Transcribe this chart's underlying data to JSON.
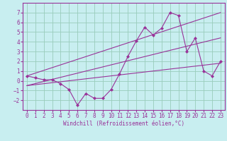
{
  "title": "",
  "xlabel": "Windchill (Refroidissement éolien,°C)",
  "xlim": [
    -0.5,
    23.5
  ],
  "ylim": [
    -3.0,
    8.0
  ],
  "yticks": [
    -2,
    -1,
    0,
    1,
    2,
    3,
    4,
    5,
    6,
    7
  ],
  "xticks": [
    0,
    1,
    2,
    3,
    4,
    5,
    6,
    7,
    8,
    9,
    10,
    11,
    12,
    13,
    14,
    15,
    16,
    17,
    18,
    19,
    20,
    21,
    22,
    23
  ],
  "background_color": "#c8eef0",
  "line_color": "#993399",
  "grid_color": "#99ccbb",
  "data_line": {
    "x": [
      0,
      1,
      2,
      3,
      4,
      5,
      6,
      7,
      8,
      9,
      10,
      11,
      12,
      13,
      14,
      15,
      16,
      17,
      18,
      19,
      20,
      21,
      22,
      23
    ],
    "y": [
      0.5,
      0.3,
      0.1,
      0.1,
      -0.3,
      -0.9,
      -2.5,
      -1.3,
      -1.8,
      -1.8,
      -0.9,
      0.7,
      2.5,
      4.1,
      5.5,
      4.7,
      5.4,
      7.0,
      6.7,
      3.0,
      4.4,
      1.0,
      0.5,
      2.0
    ]
  },
  "reg_line": {
    "x": [
      0,
      23
    ],
    "y": [
      -0.5,
      4.4
    ]
  },
  "upper_line": {
    "x": [
      0,
      23
    ],
    "y": [
      0.5,
      7.0
    ]
  },
  "lower_line": {
    "x": [
      0,
      23
    ],
    "y": [
      -0.5,
      1.8
    ]
  },
  "xlabel_fontsize": 5.5,
  "tick_fontsize": 5.5
}
